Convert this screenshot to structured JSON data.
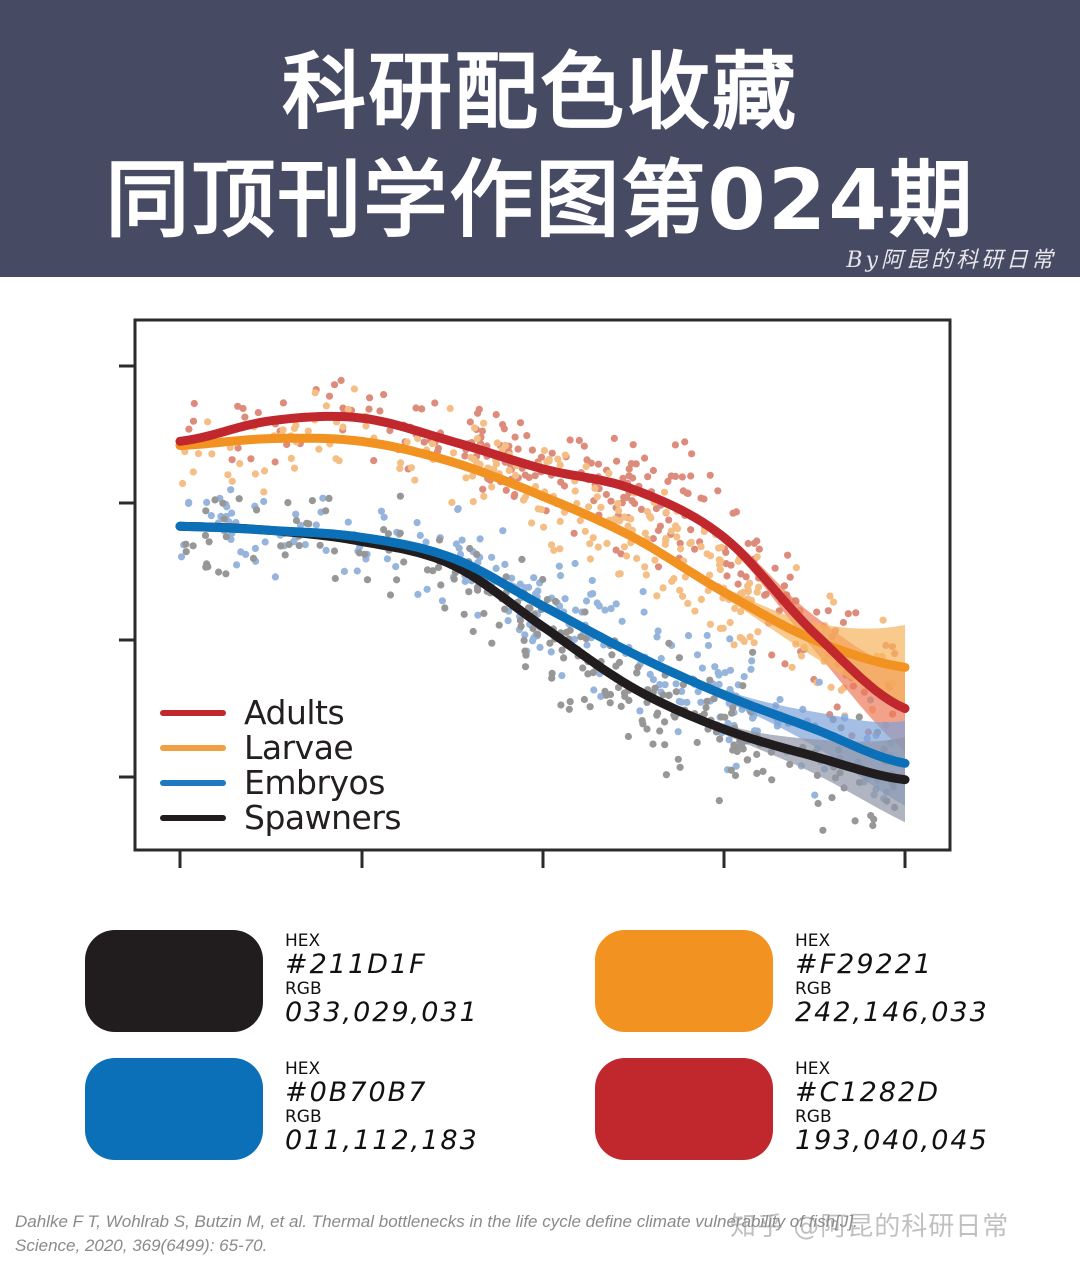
{
  "header": {
    "title_line1": "科研配色收藏",
    "title_line2": "同顶刊学作图第024期",
    "byline": "By阿昆的科研日常",
    "background": "#464a63"
  },
  "chart_data": {
    "type": "scatter",
    "title": "",
    "xlabel": "",
    "ylabel": "",
    "x_ticks_count": 5,
    "y_ticks_count": 4,
    "x_tick_labels": [],
    "y_tick_labels": [],
    "grid": false,
    "legend_position": "lower-left",
    "x_range": [
      0,
      4
    ],
    "y_range": [
      0,
      3.85
    ],
    "note": "Scatter points with LOESS-style smoothed trend lines and confidence bands; axis tick labels not shown. Values are approximate in tick units (x ticks 0..4, y ticks 0..3 bottom-to-top).",
    "series": [
      {
        "name": "Adults",
        "color": "#C1282D",
        "point_color": "#d0604a",
        "x": [
          0,
          0.5,
          1,
          1.5,
          2,
          2.5,
          3,
          3.5,
          4
        ],
        "y": [
          2.45,
          2.6,
          2.62,
          2.45,
          2.25,
          2.1,
          1.75,
          1.05,
          0.5
        ]
      },
      {
        "name": "Larvae",
        "color": "#F29221",
        "point_color": "#f1a655",
        "x": [
          0,
          0.5,
          1,
          1.5,
          2,
          2.5,
          3,
          3.5,
          4
        ],
        "y": [
          2.42,
          2.47,
          2.45,
          2.3,
          2.05,
          1.75,
          1.35,
          1.0,
          0.8
        ]
      },
      {
        "name": "Embryos",
        "color": "#0B70B7",
        "point_color": "#6f99cf",
        "x": [
          0,
          0.5,
          1,
          1.5,
          2,
          2.5,
          3,
          3.5,
          4
        ],
        "y": [
          1.83,
          1.8,
          1.75,
          1.6,
          1.25,
          0.9,
          0.6,
          0.35,
          0.1
        ]
      },
      {
        "name": "Spawners",
        "color": "#211D1F",
        "point_color": "#707070",
        "x": [
          0,
          0.5,
          1,
          1.5,
          2,
          2.5,
          3,
          3.5,
          4
        ],
        "y": [
          1.83,
          1.8,
          1.72,
          1.55,
          1.1,
          0.65,
          0.35,
          0.15,
          -0.02
        ]
      }
    ]
  },
  "legend": {
    "items": [
      {
        "label": "Adults",
        "color": "#C1282D"
      },
      {
        "label": "Larvae",
        "color": "#F29221"
      },
      {
        "label": "Embryos",
        "color": "#0B70B7"
      },
      {
        "label": "Spawners",
        "color": "#211D1F"
      }
    ]
  },
  "palette": [
    {
      "hex_label": "HEX",
      "hex": "#211D1F",
      "rgb_label": "RGB",
      "rgb": "033,029,031",
      "color": "#211D1F"
    },
    {
      "hex_label": "HEX",
      "hex": "#F29221",
      "rgb_label": "RGB",
      "rgb": "242,146,033",
      "color": "#F29221"
    },
    {
      "hex_label": "HEX",
      "hex": "#0B70B7",
      "rgb_label": "RGB",
      "rgb": "011,112,183",
      "color": "#0B70B7"
    },
    {
      "hex_label": "HEX",
      "hex": "#C1282D",
      "rgb_label": "RGB",
      "rgb": "193,040,045",
      "color": "#C1282D"
    }
  ],
  "citation": {
    "line1": "Dahlke F T, Wohlrab S, Butzin M, et al. Thermal bottlenecks in the life cycle define climate vulnerability of fish[J].",
    "line2": "Science, 2020, 369(6499): 65-70."
  },
  "watermark": {
    "zhihu": "知乎 @阿昆的科研日常"
  }
}
